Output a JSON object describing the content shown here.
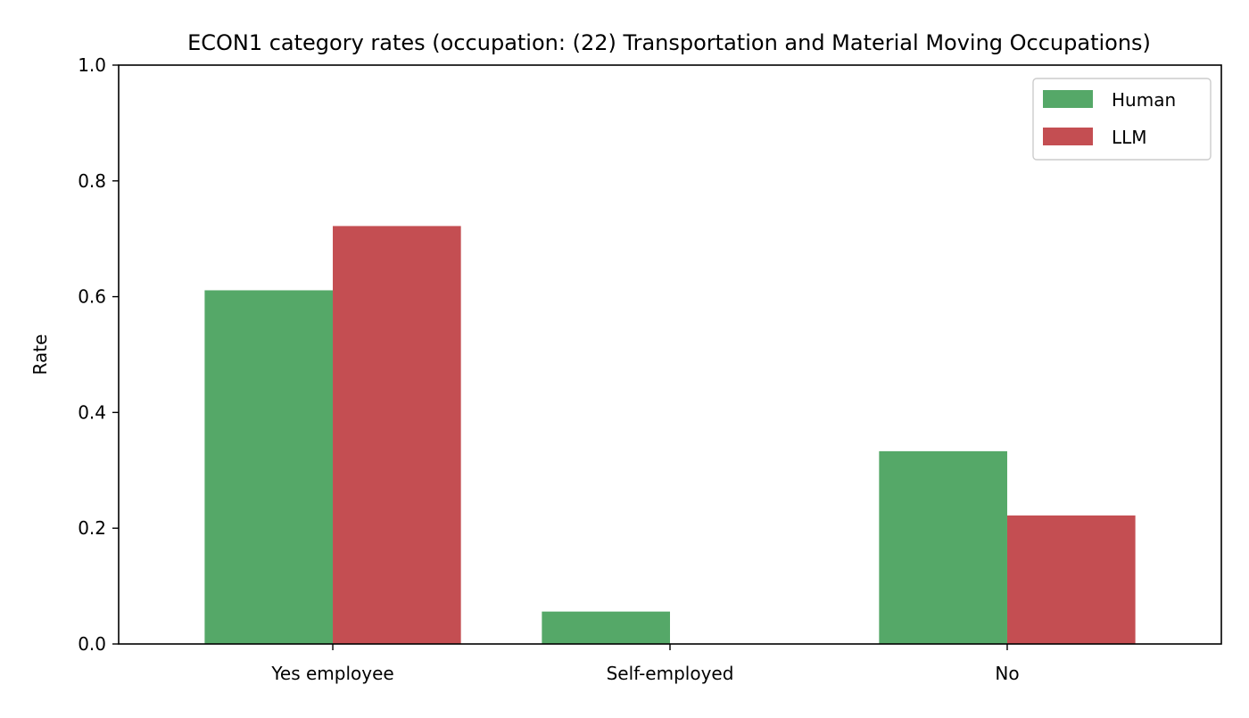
{
  "chart_data": {
    "type": "bar",
    "title": "ECON1 category rates (occupation: (22) Transportation and Material Moving Occupations)",
    "xlabel": "",
    "ylabel": "Rate",
    "ylim": [
      0,
      1.0
    ],
    "yticks": [
      "0.0",
      "0.2",
      "0.4",
      "0.6",
      "0.8",
      "1.0"
    ],
    "categories": [
      "Yes employee",
      "Self-employed",
      "No"
    ],
    "series": [
      {
        "name": "Human",
        "color": "#55a868",
        "values": [
          0.611,
          0.056,
          0.333
        ]
      },
      {
        "name": "LLM",
        "color": "#c44e52",
        "values": [
          0.722,
          0.0,
          0.222
        ]
      }
    ],
    "legend_position": "top-right",
    "grid": false
  }
}
